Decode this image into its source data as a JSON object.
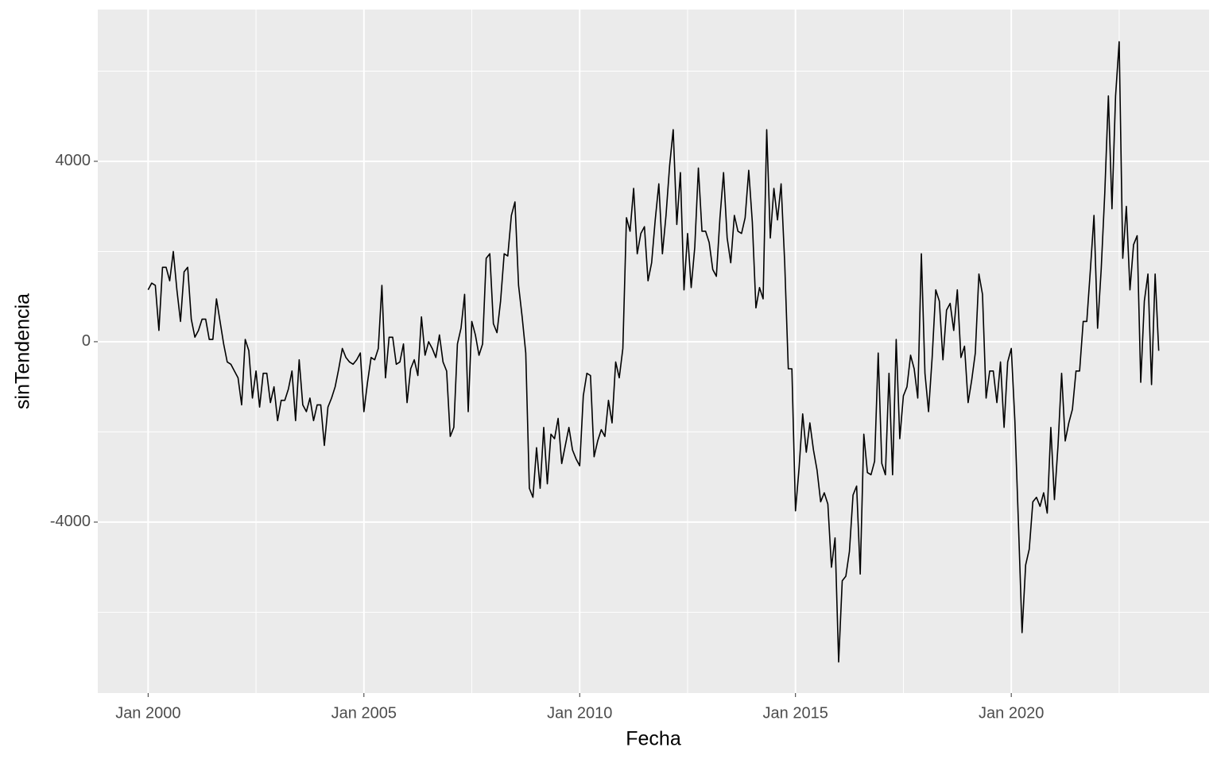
{
  "chart_data": {
    "type": "line",
    "x_label": "Fecha",
    "y_label": "sinTendencia",
    "color": "#000000",
    "grid": true,
    "x": [
      "2000-01",
      "2000-02",
      "2000-03",
      "2000-04",
      "2000-05",
      "2000-06",
      "2000-07",
      "2000-08",
      "2000-09",
      "2000-10",
      "2000-11",
      "2000-12",
      "2001-01",
      "2001-02",
      "2001-03",
      "2001-04",
      "2001-05",
      "2001-06",
      "2001-07",
      "2001-08",
      "2001-09",
      "2001-10",
      "2001-11",
      "2001-12",
      "2002-01",
      "2002-02",
      "2002-03",
      "2002-04",
      "2002-05",
      "2002-06",
      "2002-07",
      "2002-08",
      "2002-09",
      "2002-10",
      "2002-11",
      "2002-12",
      "2003-01",
      "2003-02",
      "2003-03",
      "2003-04",
      "2003-05",
      "2003-06",
      "2003-07",
      "2003-08",
      "2003-09",
      "2003-10",
      "2003-11",
      "2003-12",
      "2004-01",
      "2004-02",
      "2004-03",
      "2004-04",
      "2004-05",
      "2004-06",
      "2004-07",
      "2004-08",
      "2004-09",
      "2004-10",
      "2004-11",
      "2004-12",
      "2005-01",
      "2005-02",
      "2005-03",
      "2005-04",
      "2005-05",
      "2005-06",
      "2005-07",
      "2005-08",
      "2005-09",
      "2005-10",
      "2005-11",
      "2005-12",
      "2006-01",
      "2006-02",
      "2006-03",
      "2006-04",
      "2006-05",
      "2006-06",
      "2006-07",
      "2006-08",
      "2006-09",
      "2006-10",
      "2006-11",
      "2006-12",
      "2007-01",
      "2007-02",
      "2007-03",
      "2007-04",
      "2007-05",
      "2007-06",
      "2007-07",
      "2007-08",
      "2007-09",
      "2007-10",
      "2007-11",
      "2007-12",
      "2008-01",
      "2008-02",
      "2008-03",
      "2008-04",
      "2008-05",
      "2008-06",
      "2008-07",
      "2008-08",
      "2008-09",
      "2008-10",
      "2008-11",
      "2008-12",
      "2009-01",
      "2009-02",
      "2009-03",
      "2009-04",
      "2009-05",
      "2009-06",
      "2009-07",
      "2009-08",
      "2009-09",
      "2009-10",
      "2009-11",
      "2009-12",
      "2010-01",
      "2010-02",
      "2010-03",
      "2010-04",
      "2010-05",
      "2010-06",
      "2010-07",
      "2010-08",
      "2010-09",
      "2010-10",
      "2010-11",
      "2010-12",
      "2011-01",
      "2011-02",
      "2011-03",
      "2011-04",
      "2011-05",
      "2011-06",
      "2011-07",
      "2011-08",
      "2011-09",
      "2011-10",
      "2011-11",
      "2011-12",
      "2012-01",
      "2012-02",
      "2012-03",
      "2012-04",
      "2012-05",
      "2012-06",
      "2012-07",
      "2012-08",
      "2012-09",
      "2012-10",
      "2012-11",
      "2012-12",
      "2013-01",
      "2013-02",
      "2013-03",
      "2013-04",
      "2013-05",
      "2013-06",
      "2013-07",
      "2013-08",
      "2013-09",
      "2013-10",
      "2013-11",
      "2013-12",
      "2014-01",
      "2014-02",
      "2014-03",
      "2014-04",
      "2014-05",
      "2014-06",
      "2014-07",
      "2014-08",
      "2014-09",
      "2014-10",
      "2014-11",
      "2014-12",
      "2015-01",
      "2015-02",
      "2015-03",
      "2015-04",
      "2015-05",
      "2015-06",
      "2015-07",
      "2015-08",
      "2015-09",
      "2015-10",
      "2015-11",
      "2015-12",
      "2016-01",
      "2016-02",
      "2016-03",
      "2016-04",
      "2016-05",
      "2016-06",
      "2016-07",
      "2016-08",
      "2016-09",
      "2016-10",
      "2016-11",
      "2016-12",
      "2017-01",
      "2017-02",
      "2017-03",
      "2017-04",
      "2017-05",
      "2017-06",
      "2017-07",
      "2017-08",
      "2017-09",
      "2017-10",
      "2017-11",
      "2017-12",
      "2018-01",
      "2018-02",
      "2018-03",
      "2018-04",
      "2018-05",
      "2018-06",
      "2018-07",
      "2018-08",
      "2018-09",
      "2018-10",
      "2018-11",
      "2018-12",
      "2019-01",
      "2019-02",
      "2019-03",
      "2019-04",
      "2019-05",
      "2019-06",
      "2019-07",
      "2019-08",
      "2019-09",
      "2019-10",
      "2019-11",
      "2019-12",
      "2020-01",
      "2020-02",
      "2020-03",
      "2020-04",
      "2020-05",
      "2020-06",
      "2020-07",
      "2020-08",
      "2020-09",
      "2020-10",
      "2020-11",
      "2020-12",
      "2021-01",
      "2021-02",
      "2021-03",
      "2021-04",
      "2021-05",
      "2021-06",
      "2021-07",
      "2021-08",
      "2021-09",
      "2021-10",
      "2021-11",
      "2021-12",
      "2022-01",
      "2022-02",
      "2022-03",
      "2022-04",
      "2022-05",
      "2022-06",
      "2022-07",
      "2022-08",
      "2022-09",
      "2022-10",
      "2022-11",
      "2022-12",
      "2023-01",
      "2023-02",
      "2023-03",
      "2023-04",
      "2023-05",
      "2023-06"
    ],
    "values": [
      1150,
      1300,
      1250,
      250,
      1650,
      1650,
      1350,
      2000,
      1150,
      450,
      1550,
      1650,
      500,
      100,
      250,
      500,
      500,
      50,
      50,
      950,
      450,
      -50,
      -450,
      -500,
      -650,
      -800,
      -1400,
      50,
      -200,
      -1250,
      -650,
      -1450,
      -700,
      -700,
      -1350,
      -1000,
      -1750,
      -1300,
      -1300,
      -1050,
      -650,
      -1750,
      -400,
      -1400,
      -1550,
      -1250,
      -1750,
      -1400,
      -1400,
      -2300,
      -1450,
      -1250,
      -1000,
      -600,
      -150,
      -350,
      -450,
      -500,
      -400,
      -250,
      -1550,
      -900,
      -350,
      -400,
      -150,
      1250,
      -800,
      100,
      100,
      -500,
      -450,
      -50,
      -1350,
      -600,
      -400,
      -750,
      550,
      -300,
      0,
      -150,
      -350,
      150,
      -450,
      -650,
      -2100,
      -1900,
      -50,
      300,
      1050,
      -1550,
      450,
      150,
      -300,
      -50,
      1850,
      1950,
      400,
      200,
      900,
      1950,
      1900,
      2800,
      3100,
      1250,
      550,
      -250,
      -3250,
      -3450,
      -2350,
      -3250,
      -1900,
      -3150,
      -2050,
      -2150,
      -1700,
      -2700,
      -2300,
      -1900,
      -2400,
      -2600,
      -2750,
      -1200,
      -700,
      -750,
      -2550,
      -2200,
      -1950,
      -2100,
      -1300,
      -1800,
      -450,
      -800,
      -150,
      2750,
      2450,
      3400,
      1950,
      2400,
      2550,
      1350,
      1750,
      2700,
      3500,
      1950,
      2800,
      3900,
      4700,
      2600,
      3750,
      1150,
      2400,
      1200,
      2100,
      3850,
      2450,
      2450,
      2200,
      1600,
      1450,
      2750,
      3750,
      2300,
      1750,
      2800,
      2450,
      2400,
      2750,
      3800,
      2650,
      750,
      1200,
      950,
      4700,
      2300,
      3400,
      2700,
      3500,
      1750,
      -600,
      -600,
      -3750,
      -2800,
      -1600,
      -2450,
      -1800,
      -2400,
      -2850,
      -3550,
      -3350,
      -3600,
      -5000,
      -4350,
      -7100,
      -5300,
      -5200,
      -4650,
      -3400,
      -3200,
      -5150,
      -2050,
      -2900,
      -2950,
      -2650,
      -250,
      -2700,
      -2950,
      -700,
      -2950,
      50,
      -2150,
      -1200,
      -1000,
      -300,
      -600,
      -1250,
      1950,
      -700,
      -1550,
      -350,
      1150,
      900,
      -400,
      700,
      850,
      250,
      1150,
      -350,
      -100,
      -1350,
      -850,
      -250,
      1500,
      1050,
      -1250,
      -650,
      -650,
      -1350,
      -450,
      -1900,
      -450,
      -150,
      -1750,
      -4050,
      -6450,
      -4950,
      -4600,
      -3550,
      -3450,
      -3650,
      -3350,
      -3800,
      -1900,
      -3500,
      -2300,
      -700,
      -2200,
      -1800,
      -1500,
      -650,
      -650,
      450,
      450,
      1600,
      2800,
      300,
      1600,
      3300,
      5450,
      2950,
      5450,
      6650,
      1850,
      3000,
      1150,
      2150,
      2350,
      -900,
      900,
      1500,
      -950,
      1500,
      -200
    ],
    "xlim": [
      "1998-11",
      "2024-08"
    ],
    "xticks": [
      {
        "value": "2000-01",
        "label": "Jan 2000"
      },
      {
        "value": "2005-01",
        "label": "Jan 2005"
      },
      {
        "value": "2010-01",
        "label": "Jan 2010"
      },
      {
        "value": "2015-01",
        "label": "Jan 2015"
      },
      {
        "value": "2020-01",
        "label": "Jan 2020"
      }
    ],
    "minor_xticks": [
      "2002-07",
      "2007-07",
      "2012-07",
      "2017-07",
      "2022-07"
    ],
    "ylim": [
      -7790,
      7365
    ],
    "yticks": [
      -4000,
      0,
      4000
    ],
    "minor_yticks": [
      -6000,
      -2000,
      2000,
      6000
    ]
  }
}
